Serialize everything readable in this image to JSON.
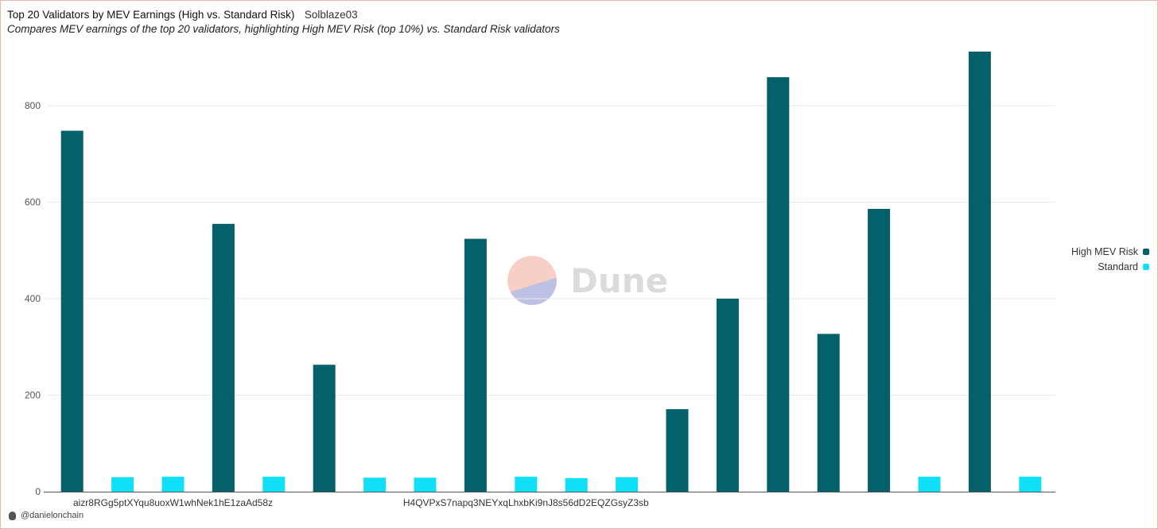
{
  "header": {
    "title": "Top 20 Validators by MEV Earnings (High vs. Standard Risk)",
    "author": "Solblaze03",
    "subtitle": "Compares MEV earnings of the top 20 validators, highlighting High MEV Risk (top 10%) vs. Standard Risk validators"
  },
  "watermark": {
    "text": "Dune"
  },
  "footer": {
    "handle": "@danielonchain"
  },
  "colors": {
    "high": "#04606b",
    "standard": "#0fe0f8",
    "grid": "#e9e9e9",
    "axis": "#555555"
  },
  "chart_data": {
    "type": "bar",
    "title": "Top 20 Validators by MEV Earnings (High vs. Standard Risk)",
    "categories": [
      "1",
      "2",
      "3",
      "4",
      "5",
      "6",
      "7",
      "8",
      "9",
      "10",
      "11",
      "12",
      "13",
      "14",
      "15",
      "16",
      "17",
      "18",
      "19",
      "20"
    ],
    "x_tick_labels": [
      {
        "index": 2,
        "text": "aizr8RGg5ptXYqu8uoxW1whNek1hE1zaAd58z"
      },
      {
        "index": 9,
        "text": "H4QVPxS7napq3NEYxqLhxbKi9nJ8s56dD2EQZGsyZ3sb"
      }
    ],
    "series": [
      {
        "name": "High MEV Risk",
        "color": "#04606b",
        "values": [
          748,
          null,
          null,
          555,
          null,
          263,
          null,
          null,
          524,
          null,
          null,
          null,
          171,
          400,
          859,
          327,
          586,
          null,
          912,
          null
        ]
      },
      {
        "name": "Standard",
        "color": "#0fe0f8",
        "values": [
          null,
          30,
          31,
          null,
          31,
          null,
          29,
          29,
          null,
          31,
          28,
          30,
          null,
          null,
          null,
          null,
          null,
          31,
          null,
          31
        ]
      }
    ],
    "ylim": [
      0,
      940
    ],
    "yticks": [
      0,
      200,
      400,
      600,
      800
    ],
    "grid": true,
    "legend": "right"
  }
}
